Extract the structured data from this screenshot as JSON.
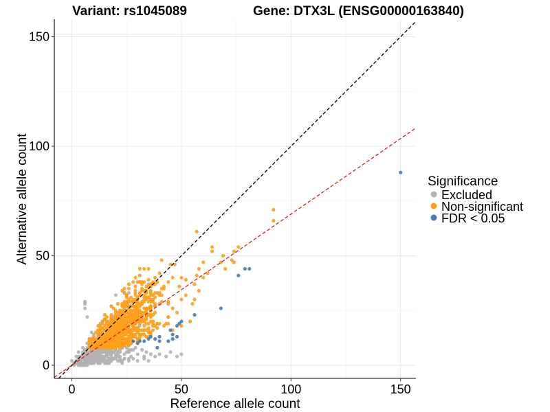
{
  "chart_data": {
    "type": "scatter",
    "title_left": "Variant: rs1045089",
    "title_right": "Gene: DTX3L (ENSG00000163840)",
    "xlabel": "Reference allele count",
    "ylabel": "Alternative allele count",
    "xlim": [
      -8,
      157
    ],
    "ylim": [
      -6,
      158
    ],
    "x_ticks": [
      0,
      50,
      100,
      150
    ],
    "y_ticks": [
      0,
      50,
      100,
      150
    ],
    "x_tick_labels": [
      "0",
      "50",
      "100",
      "150"
    ],
    "y_tick_labels": [
      "0",
      "50",
      "100",
      "150"
    ],
    "grid": true,
    "legend": {
      "title": "Significance",
      "position": "right",
      "entries": [
        {
          "key": "excluded",
          "label": "Excluded",
          "color": "#b3b3b3"
        },
        {
          "key": "nonsig",
          "label": "Non-significant",
          "color": "#ff9f1c"
        },
        {
          "key": "fdr",
          "label": "FDR < 0.05",
          "color": "#4a7bb0"
        }
      ]
    },
    "reference_lines": [
      {
        "name": "identity",
        "slope": 1,
        "intercept": 0,
        "color": "#000000",
        "style": "dashed"
      },
      {
        "name": "fit",
        "slope": 0.69,
        "intercept": 0,
        "color": "#e31a1c",
        "style": "dashed"
      }
    ],
    "series": [
      {
        "name": "Excluded",
        "color": "#b3b3b3",
        "points": [
          [
            4,
            3
          ],
          [
            5,
            5
          ],
          [
            6,
            2
          ],
          [
            7,
            6
          ],
          [
            8,
            4
          ],
          [
            9,
            7
          ],
          [
            10,
            8
          ],
          [
            11,
            5
          ],
          [
            12,
            9
          ],
          [
            13,
            6
          ],
          [
            14,
            4
          ],
          [
            15,
            10
          ],
          [
            16,
            7
          ],
          [
            17,
            5
          ],
          [
            18,
            9
          ],
          [
            19,
            6
          ],
          [
            20,
            8
          ],
          [
            21,
            4
          ],
          [
            22,
            7
          ],
          [
            23,
            9
          ],
          [
            24,
            5
          ],
          [
            25,
            8
          ],
          [
            26,
            6
          ],
          [
            27,
            4
          ],
          [
            28,
            7
          ],
          [
            30,
            5
          ],
          [
            32,
            7
          ],
          [
            34,
            6
          ],
          [
            36,
            5
          ],
          [
            38,
            4
          ],
          [
            40,
            5
          ],
          [
            43,
            4
          ],
          [
            45,
            6
          ],
          [
            48,
            4
          ],
          [
            50,
            5
          ],
          [
            3,
            6
          ],
          [
            5,
            8
          ],
          [
            7,
            10
          ],
          [
            9,
            12
          ],
          [
            11,
            11
          ],
          [
            13,
            13
          ],
          [
            6,
            28
          ],
          [
            6,
            29
          ],
          [
            6,
            26
          ],
          [
            7,
            22
          ],
          [
            0,
            2
          ],
          [
            1,
            1
          ],
          [
            2,
            4
          ],
          [
            1,
            0
          ],
          [
            3,
            1
          ],
          [
            8,
            1
          ],
          [
            10,
            2
          ],
          [
            12,
            1
          ],
          [
            14,
            2
          ],
          [
            16,
            1
          ],
          [
            18,
            2
          ],
          [
            20,
            3
          ],
          [
            22,
            2
          ],
          [
            24,
            3
          ],
          [
            26,
            2
          ],
          [
            28,
            3
          ],
          [
            30,
            2
          ],
          [
            33,
            3
          ],
          [
            35,
            2
          ]
        ]
      },
      {
        "name": "Non-significant",
        "color": "#ff9f1c",
        "points": [
          [
            57,
            61
          ],
          [
            64,
            54
          ],
          [
            64,
            52
          ],
          [
            69,
            50
          ],
          [
            74,
            52
          ],
          [
            76,
            54
          ],
          [
            68,
            47
          ],
          [
            74,
            47
          ],
          [
            92,
            71
          ],
          [
            92,
            66
          ],
          [
            73,
            48
          ],
          [
            70,
            44
          ],
          [
            60,
            47
          ],
          [
            58,
            44
          ],
          [
            57,
            41
          ],
          [
            56,
            37
          ],
          [
            52,
            39
          ],
          [
            50,
            40
          ],
          [
            46,
            40
          ],
          [
            60,
            40
          ],
          [
            62,
            42
          ],
          [
            58,
            34
          ],
          [
            56,
            30
          ],
          [
            55,
            28
          ],
          [
            50,
            30
          ],
          [
            52,
            32
          ],
          [
            40,
            42
          ],
          [
            38,
            40
          ],
          [
            36,
            36
          ],
          [
            42,
            36
          ],
          [
            44,
            38
          ],
          [
            40,
            33
          ],
          [
            34,
            31
          ],
          [
            37,
            29
          ],
          [
            40,
            28
          ],
          [
            44,
            28
          ],
          [
            46,
            26
          ],
          [
            48,
            24
          ],
          [
            44,
            22
          ],
          [
            42,
            18
          ],
          [
            46,
            16
          ],
          [
            50,
            18
          ],
          [
            54,
            20
          ]
        ]
      },
      {
        "name": "FDR < 0.05",
        "color": "#4a7bb0",
        "points": [
          [
            150,
            88
          ],
          [
            81,
            44
          ],
          [
            79,
            44
          ],
          [
            76,
            41
          ],
          [
            68,
            26
          ],
          [
            56,
            23
          ],
          [
            48,
            13
          ],
          [
            46,
            14
          ],
          [
            46,
            12
          ],
          [
            44,
            11
          ],
          [
            40,
            13
          ],
          [
            40,
            11
          ],
          [
            38,
            12
          ],
          [
            36,
            13
          ],
          [
            35,
            12
          ],
          [
            33,
            11
          ],
          [
            31,
            11
          ],
          [
            30,
            10
          ],
          [
            28,
            11
          ],
          [
            39,
            8
          ],
          [
            45,
            16
          ],
          [
            49,
            19
          ],
          [
            48,
            18
          ],
          [
            50,
            20
          ]
        ]
      }
    ],
    "dense_cloud": {
      "excluded": {
        "n": 520,
        "x_mean": 12,
        "x_sd": 7,
        "ratio_mean": 0.55,
        "ratio_sd": 0.35
      },
      "nonsig": {
        "n": 900,
        "x_mean": 22,
        "x_sd": 8,
        "ratio_mean": 0.75,
        "ratio_sd": 0.28
      }
    }
  }
}
